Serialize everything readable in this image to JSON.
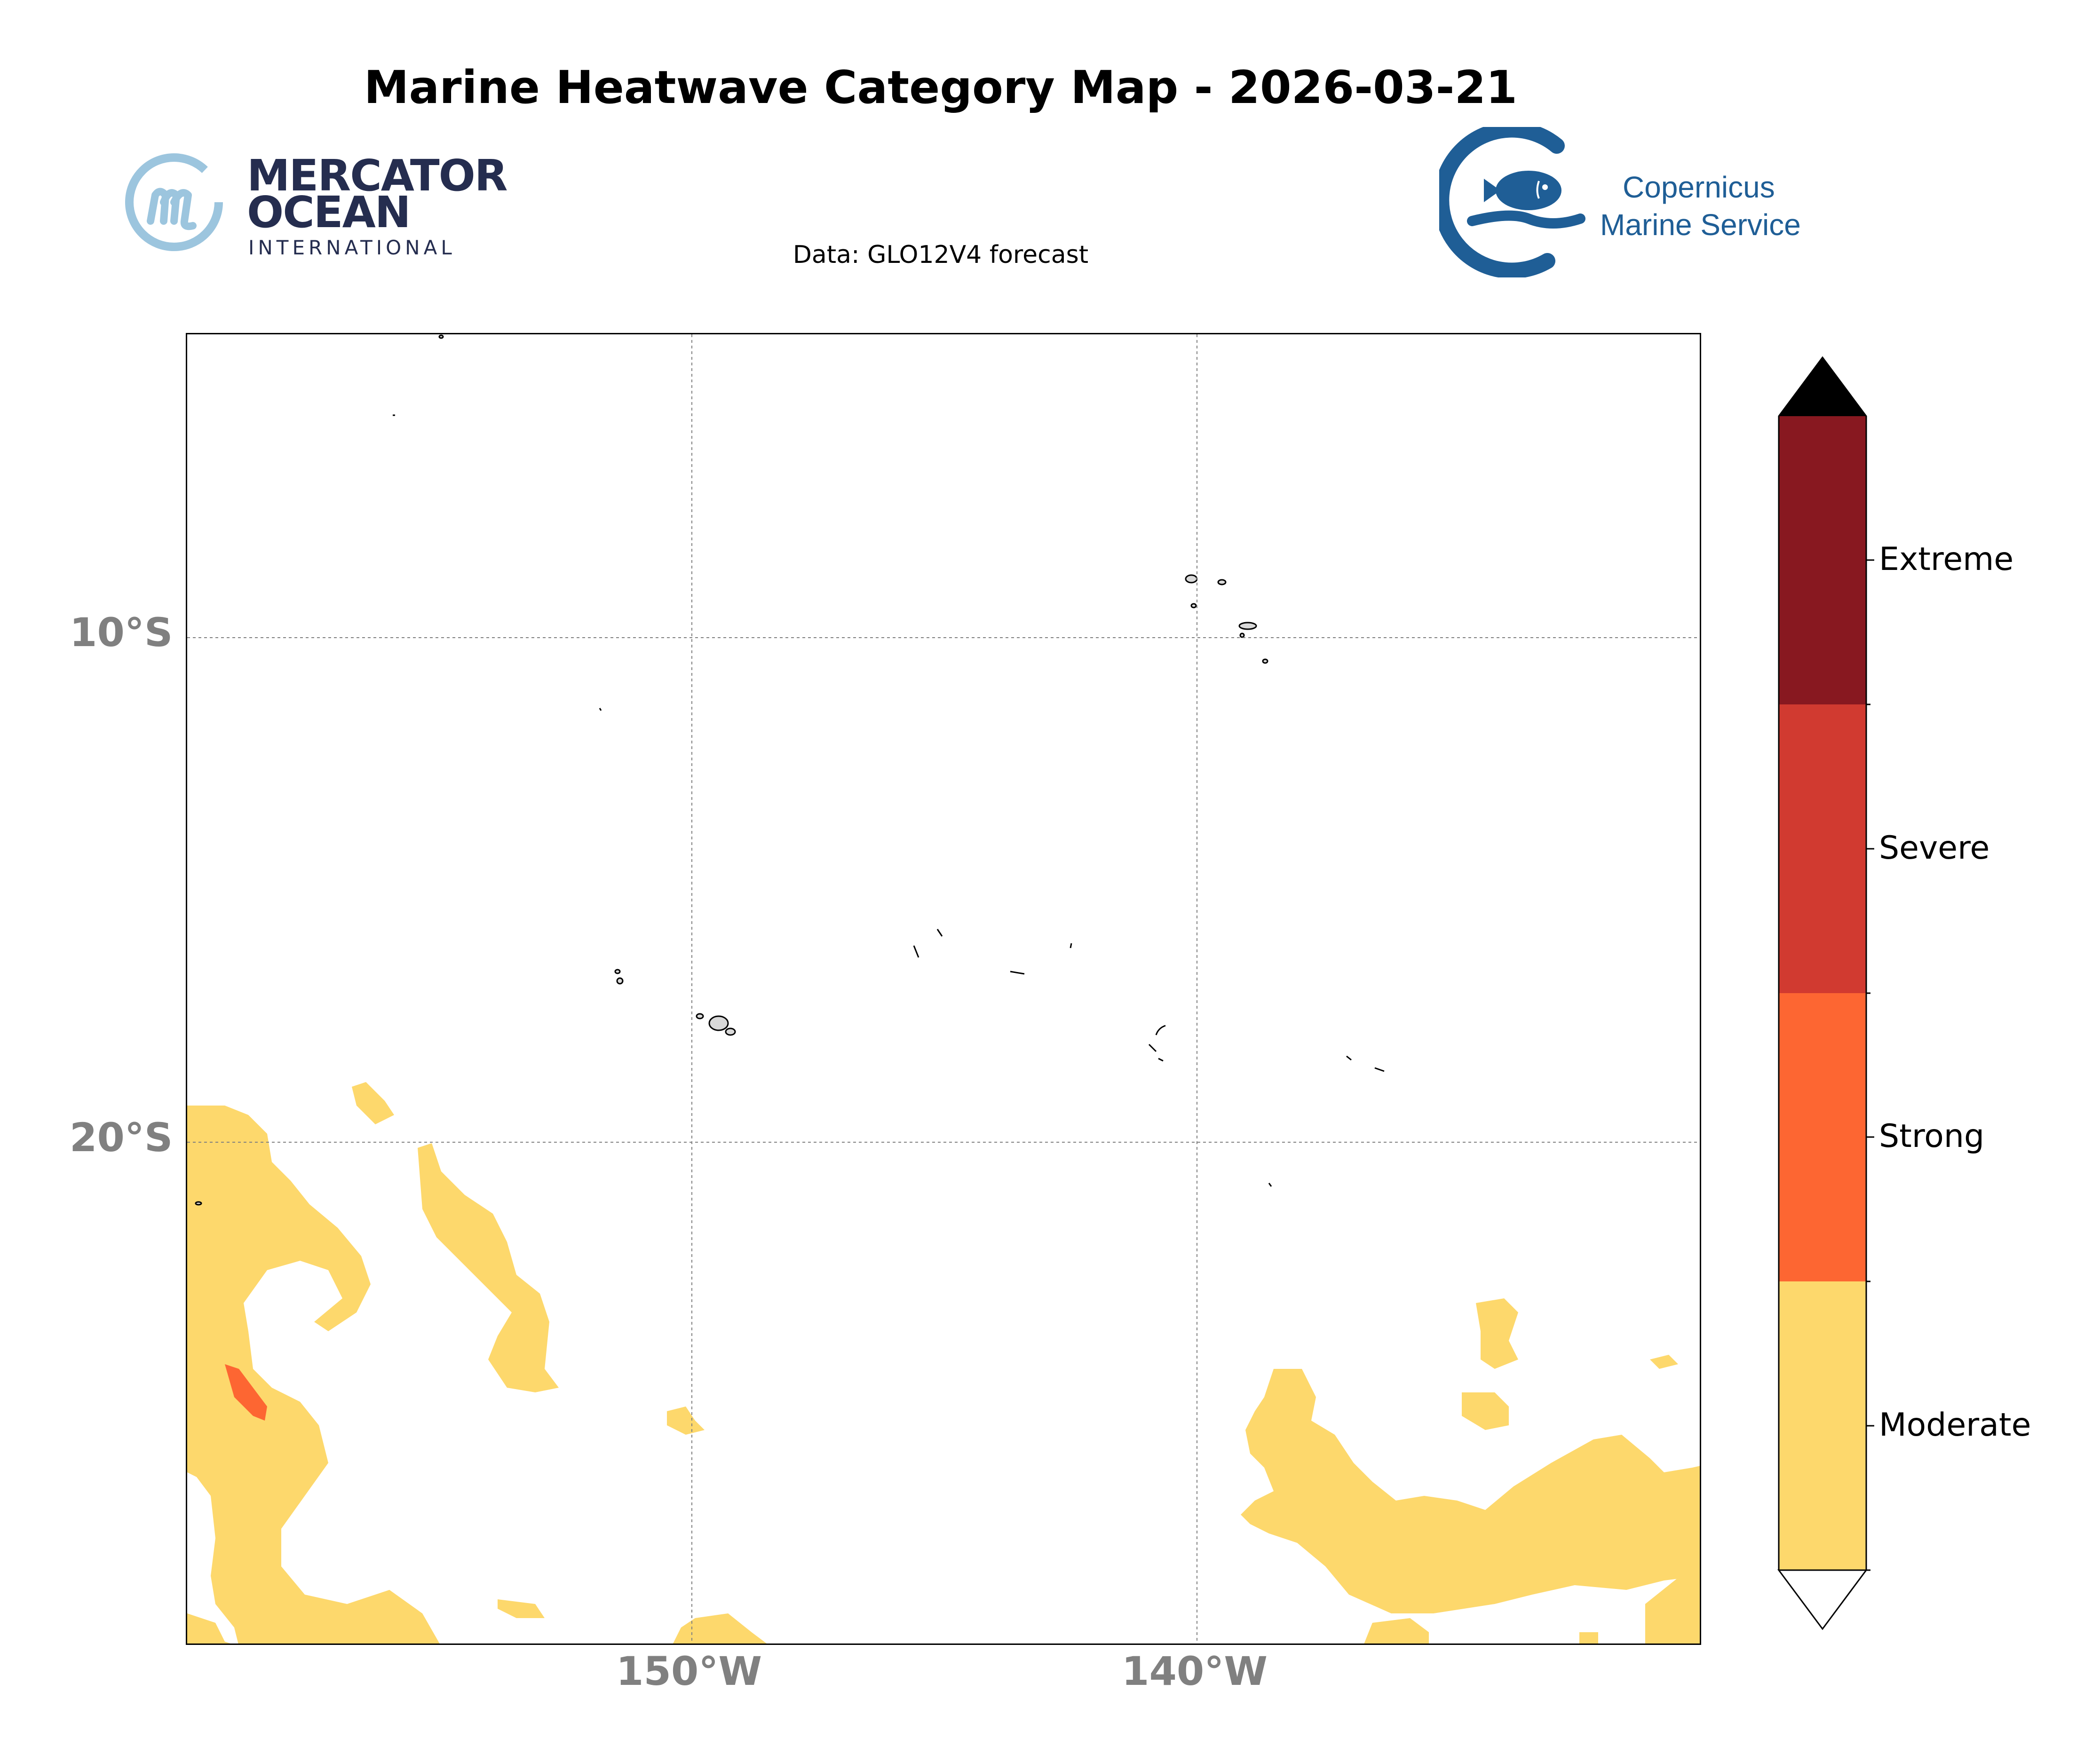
{
  "title": "Marine Heatwave Category Map - 2026-03-21",
  "subtitle": "Data: GLO12V4 forecast",
  "logos": {
    "mercator": {
      "line1": "MERCATOR",
      "line2": "OCEAN",
      "line3": "INTERNATIONAL"
    },
    "copernicus": {
      "line1": "Copernicus",
      "line2": "Marine Service"
    }
  },
  "map": {
    "lat_labels": [
      "10°S",
      "20°S"
    ],
    "lon_labels": [
      "150°W",
      "140°W"
    ],
    "colors": {
      "moderate": "#fdd86c",
      "strong": "#fd6632",
      "severe": "#d13a30",
      "extreme": "#881820",
      "over": "#000000",
      "coast": "#000000"
    }
  },
  "colorbar": {
    "labels": [
      "Extreme",
      "Severe",
      "Strong",
      "Moderate"
    ],
    "colors": [
      "#881820",
      "#d13a30",
      "#fd6632",
      "#fdd86c"
    ]
  }
}
